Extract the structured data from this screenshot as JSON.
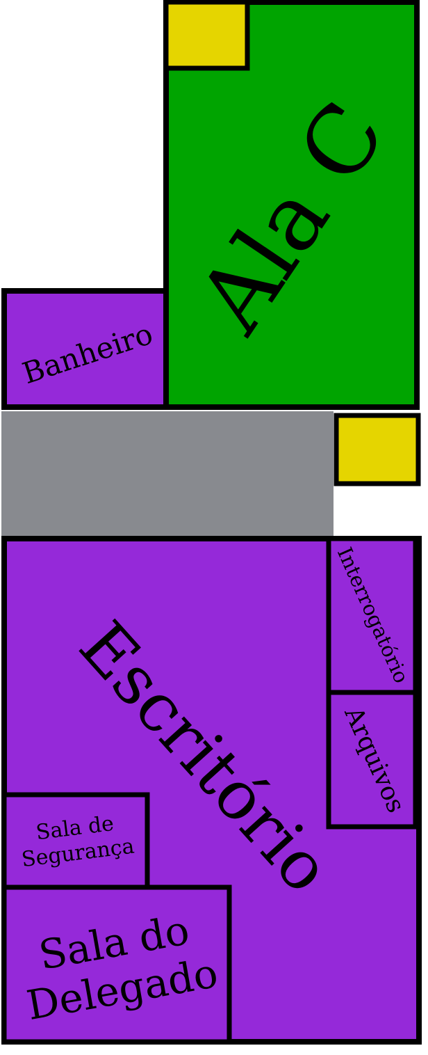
{
  "colors": {
    "ala": "#00a400",
    "room": "#9529d9",
    "corridor": "#888a8f",
    "marker": "#e5d500",
    "wall": "#000000"
  },
  "rooms": {
    "ala_c": "Ala C",
    "banheiro": "Banheiro",
    "escritorio": "Escritório",
    "interrogatorio": "Interrogatório",
    "arquivos": "Arquivos",
    "sala_seguranca": [
      "Sala de",
      "Segurança"
    ],
    "sala_delegado": [
      "Sala do",
      "Delegado"
    ]
  }
}
